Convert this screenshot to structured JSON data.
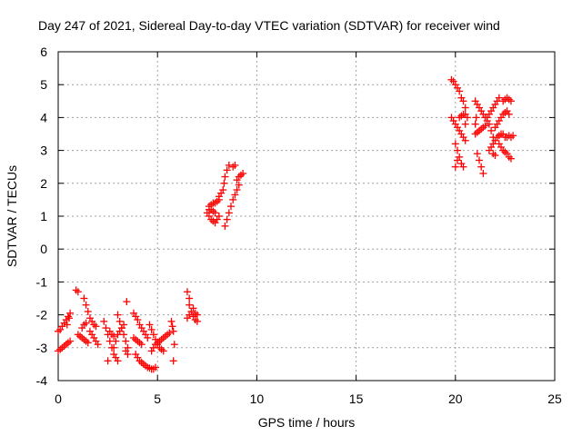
{
  "chart_data": {
    "type": "scatter",
    "title": "Day 247 of 2021, Sidereal Day-to-day VTEC variation (SDTVAR) for receiver wind",
    "xlabel": "GPS time / hours",
    "ylabel": "SDTVAR / TECUs",
    "xlim": [
      0,
      25
    ],
    "ylim": [
      -4,
      6
    ],
    "xticks": [
      0,
      5,
      10,
      15,
      20,
      25
    ],
    "yticks": [
      -4,
      -3,
      -2,
      -1,
      0,
      1,
      2,
      3,
      4,
      5,
      6
    ],
    "grid": true,
    "marker": "+",
    "series": [
      {
        "name": "SDTVAR",
        "color": "#ff0000",
        "points": [
          [
            0.0,
            -3.1
          ],
          [
            0.1,
            -3.05
          ],
          [
            0.2,
            -3.0
          ],
          [
            0.3,
            -2.95
          ],
          [
            0.4,
            -2.9
          ],
          [
            0.5,
            -2.85
          ],
          [
            0.6,
            -2.8
          ],
          [
            0.0,
            -2.5
          ],
          [
            0.1,
            -2.45
          ],
          [
            0.2,
            -2.35
          ],
          [
            0.3,
            -2.25
          ],
          [
            0.4,
            -2.15
          ],
          [
            0.5,
            -2.05
          ],
          [
            0.6,
            -1.95
          ],
          [
            0.55,
            -2.1
          ],
          [
            0.45,
            -2.3
          ],
          [
            0.9,
            -1.25
          ],
          [
            1.0,
            -1.3
          ],
          [
            1.0,
            -2.6
          ],
          [
            1.1,
            -2.65
          ],
          [
            1.2,
            -2.7
          ],
          [
            1.3,
            -2.75
          ],
          [
            1.4,
            -2.8
          ],
          [
            1.5,
            -2.85
          ],
          [
            1.3,
            -1.5
          ],
          [
            1.4,
            -1.7
          ],
          [
            1.5,
            -1.9
          ],
          [
            1.6,
            -2.1
          ],
          [
            1.7,
            -2.2
          ],
          [
            1.8,
            -2.3
          ],
          [
            1.9,
            -2.35
          ],
          [
            1.2,
            -2.4
          ],
          [
            1.3,
            -2.3
          ],
          [
            1.4,
            -2.25
          ],
          [
            1.6,
            -2.5
          ],
          [
            1.7,
            -2.6
          ],
          [
            1.8,
            -2.7
          ],
          [
            1.9,
            -2.8
          ],
          [
            2.0,
            -2.9
          ],
          [
            2.3,
            -2.2
          ],
          [
            2.4,
            -2.4
          ],
          [
            2.5,
            -2.6
          ],
          [
            2.6,
            -2.8
          ],
          [
            2.7,
            -3.0
          ],
          [
            2.8,
            -3.2
          ],
          [
            2.9,
            -3.3
          ],
          [
            3.0,
            -3.4
          ],
          [
            2.5,
            -3.4
          ],
          [
            3.0,
            -2.0
          ],
          [
            3.1,
            -2.2
          ],
          [
            3.2,
            -2.4
          ],
          [
            3.3,
            -2.6
          ],
          [
            3.4,
            -2.8
          ],
          [
            3.5,
            -3.0
          ],
          [
            2.8,
            -3.0
          ],
          [
            2.9,
            -2.8
          ],
          [
            3.0,
            -2.6
          ],
          [
            3.1,
            -2.5
          ],
          [
            3.2,
            -2.4
          ],
          [
            3.3,
            -2.3
          ],
          [
            2.6,
            -2.5
          ],
          [
            2.7,
            -2.6
          ],
          [
            2.8,
            -2.65
          ],
          [
            3.4,
            -3.1
          ],
          [
            3.5,
            -3.2
          ],
          [
            3.45,
            -1.6
          ],
          [
            3.8,
            -1.95
          ],
          [
            3.9,
            -2.05
          ],
          [
            4.0,
            -2.15
          ],
          [
            4.1,
            -2.3
          ],
          [
            4.2,
            -2.4
          ],
          [
            4.3,
            -2.5
          ],
          [
            4.4,
            -2.6
          ],
          [
            4.5,
            -2.7
          ],
          [
            3.9,
            -3.2
          ],
          [
            4.0,
            -3.3
          ],
          [
            4.1,
            -3.4
          ],
          [
            4.2,
            -3.45
          ],
          [
            4.3,
            -3.5
          ],
          [
            4.4,
            -3.55
          ],
          [
            4.5,
            -3.6
          ],
          [
            4.6,
            -3.62
          ],
          [
            4.7,
            -3.65
          ],
          [
            4.8,
            -3.65
          ],
          [
            4.9,
            -3.6
          ],
          [
            3.8,
            -2.7
          ],
          [
            3.9,
            -2.75
          ],
          [
            4.0,
            -2.8
          ],
          [
            4.1,
            -2.85
          ],
          [
            4.2,
            -2.9
          ],
          [
            4.6,
            -2.3
          ],
          [
            4.7,
            -2.45
          ],
          [
            4.8,
            -2.6
          ],
          [
            4.9,
            -2.75
          ],
          [
            5.0,
            -2.9
          ],
          [
            5.1,
            -3.0
          ],
          [
            5.2,
            -3.05
          ],
          [
            5.3,
            -3.1
          ],
          [
            4.7,
            -3.1
          ],
          [
            4.8,
            -3.0
          ],
          [
            4.9,
            -2.9
          ],
          [
            5.0,
            -2.85
          ],
          [
            5.1,
            -2.8
          ],
          [
            5.2,
            -2.75
          ],
          [
            5.3,
            -2.7
          ],
          [
            5.4,
            -2.65
          ],
          [
            5.5,
            -2.6
          ],
          [
            5.6,
            -2.55
          ],
          [
            5.7,
            -2.2
          ],
          [
            5.75,
            -2.35
          ],
          [
            5.8,
            -2.5
          ],
          [
            5.85,
            -2.9
          ],
          [
            5.8,
            -3.4
          ],
          [
            6.5,
            -1.3
          ],
          [
            6.6,
            -1.5
          ],
          [
            6.6,
            -1.7
          ],
          [
            6.7,
            -1.9
          ],
          [
            6.8,
            -2.05
          ],
          [
            6.9,
            -2.15
          ],
          [
            7.0,
            -2.2
          ],
          [
            6.5,
            -2.1
          ],
          [
            6.6,
            -2.0
          ],
          [
            6.8,
            -1.8
          ],
          [
            6.9,
            -1.95
          ],
          [
            7.0,
            -2.0
          ],
          [
            7.5,
            1.1
          ],
          [
            7.6,
            1.0
          ],
          [
            7.7,
            0.9
          ],
          [
            7.8,
            0.85
          ],
          [
            7.9,
            0.8
          ],
          [
            8.0,
            0.9
          ],
          [
            8.1,
            1.0
          ],
          [
            7.6,
            1.3
          ],
          [
            7.7,
            1.35
          ],
          [
            7.8,
            1.4
          ],
          [
            7.9,
            1.4
          ],
          [
            8.0,
            1.45
          ],
          [
            8.1,
            1.5
          ],
          [
            7.6,
            1.2
          ],
          [
            7.7,
            1.2
          ],
          [
            7.8,
            1.15
          ],
          [
            7.9,
            1.1
          ],
          [
            8.1,
            1.6
          ],
          [
            8.2,
            1.7
          ],
          [
            8.3,
            1.8
          ],
          [
            8.35,
            2.0
          ],
          [
            8.4,
            2.2
          ],
          [
            8.5,
            2.4
          ],
          [
            8.6,
            2.55
          ],
          [
            8.4,
            0.7
          ],
          [
            8.5,
            0.9
          ],
          [
            8.6,
            1.1
          ],
          [
            8.7,
            1.3
          ],
          [
            8.8,
            1.5
          ],
          [
            8.9,
            1.65
          ],
          [
            9.0,
            1.8
          ],
          [
            9.1,
            1.95
          ],
          [
            9.0,
            2.1
          ],
          [
            9.1,
            2.2
          ],
          [
            9.2,
            2.25
          ],
          [
            9.3,
            2.3
          ],
          [
            8.8,
            2.5
          ],
          [
            8.9,
            2.55
          ],
          [
            19.8,
            5.15
          ],
          [
            19.9,
            5.1
          ],
          [
            20.0,
            5.0
          ],
          [
            20.1,
            4.9
          ],
          [
            20.2,
            4.8
          ],
          [
            20.3,
            4.6
          ],
          [
            20.4,
            4.5
          ],
          [
            20.5,
            4.3
          ],
          [
            19.8,
            4.0
          ],
          [
            19.9,
            3.9
          ],
          [
            20.0,
            3.8
          ],
          [
            20.1,
            3.7
          ],
          [
            20.2,
            3.6
          ],
          [
            20.3,
            3.5
          ],
          [
            20.4,
            3.4
          ],
          [
            20.5,
            3.3
          ],
          [
            20.0,
            3.2
          ],
          [
            20.1,
            3.0
          ],
          [
            20.2,
            2.8
          ],
          [
            20.3,
            2.6
          ],
          [
            20.4,
            2.5
          ],
          [
            20.0,
            2.5
          ],
          [
            20.1,
            2.7
          ],
          [
            20.2,
            4.0
          ],
          [
            20.3,
            4.05
          ],
          [
            20.4,
            4.1
          ],
          [
            20.5,
            4.1
          ],
          [
            20.6,
            4.0
          ],
          [
            20.5,
            3.8
          ],
          [
            21.1,
            2.9
          ],
          [
            21.2,
            2.7
          ],
          [
            21.3,
            2.5
          ],
          [
            21.4,
            2.3
          ],
          [
            21.0,
            3.8
          ],
          [
            21.05,
            4.0
          ],
          [
            21.0,
            3.5
          ],
          [
            21.1,
            3.55
          ],
          [
            21.2,
            3.6
          ],
          [
            21.3,
            3.65
          ],
          [
            21.4,
            3.7
          ],
          [
            21.5,
            3.75
          ],
          [
            21.0,
            4.5
          ],
          [
            21.1,
            4.4
          ],
          [
            21.2,
            4.3
          ],
          [
            21.3,
            4.2
          ],
          [
            21.4,
            4.1
          ],
          [
            21.5,
            4.0
          ],
          [
            21.6,
            3.9
          ],
          [
            21.7,
            3.8
          ],
          [
            21.8,
            3.6
          ],
          [
            21.9,
            3.4
          ],
          [
            21.6,
            4.0
          ],
          [
            21.7,
            4.1
          ],
          [
            21.8,
            4.2
          ],
          [
            21.9,
            4.3
          ],
          [
            22.0,
            4.4
          ],
          [
            22.1,
            4.5
          ],
          [
            22.2,
            4.6
          ],
          [
            21.7,
            3.0
          ],
          [
            21.8,
            3.1
          ],
          [
            21.9,
            3.2
          ],
          [
            22.0,
            3.3
          ],
          [
            22.1,
            3.4
          ],
          [
            22.2,
            3.45
          ],
          [
            22.3,
            3.5
          ],
          [
            22.4,
            3.5
          ],
          [
            22.0,
            3.7
          ],
          [
            22.1,
            3.8
          ],
          [
            22.2,
            3.9
          ],
          [
            22.3,
            4.0
          ],
          [
            22.4,
            4.1
          ],
          [
            22.5,
            4.15
          ],
          [
            22.6,
            4.2
          ],
          [
            22.7,
            4.1
          ],
          [
            22.4,
            4.5
          ],
          [
            22.5,
            4.55
          ],
          [
            22.6,
            4.6
          ],
          [
            22.7,
            4.55
          ],
          [
            22.8,
            4.5
          ],
          [
            22.2,
            3.2
          ],
          [
            22.3,
            3.1
          ],
          [
            22.4,
            3.0
          ],
          [
            22.5,
            2.95
          ],
          [
            22.6,
            2.9
          ],
          [
            22.7,
            2.8
          ],
          [
            22.8,
            2.75
          ],
          [
            22.5,
            3.4
          ],
          [
            22.6,
            3.4
          ],
          [
            22.7,
            3.45
          ],
          [
            22.8,
            3.4
          ],
          [
            22.9,
            3.45
          ],
          [
            21.9,
            2.9
          ],
          [
            22.0,
            2.85
          ]
        ]
      }
    ]
  }
}
